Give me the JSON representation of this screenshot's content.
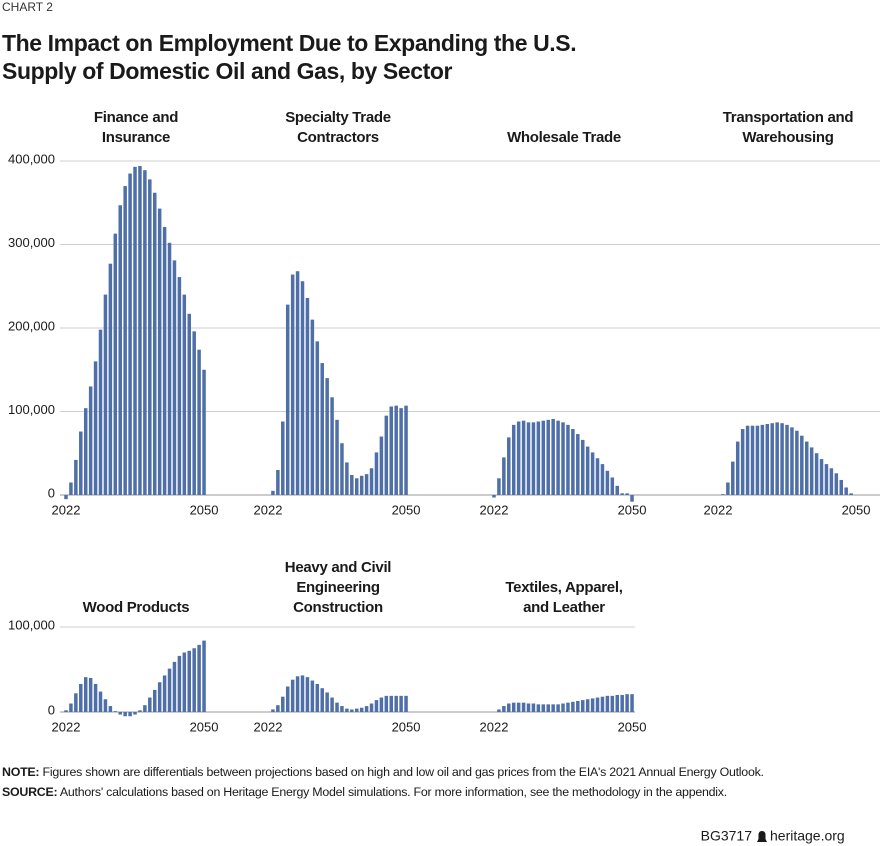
{
  "header": {
    "label": "CHART 2",
    "title": [
      "The Impact on Employment Due to Expanding the U.S.",
      "Supply of Domestic Oil and Gas, by Sector"
    ]
  },
  "chart_data": [
    {
      "type": "bar",
      "title": [
        "Finance and",
        "Insurance"
      ],
      "color": "#4e6fa8",
      "x": [
        2022,
        2023,
        2024,
        2025,
        2026,
        2027,
        2028,
        2029,
        2030,
        2031,
        2032,
        2033,
        2034,
        2035,
        2036,
        2037,
        2038,
        2039,
        2040,
        2041,
        2042,
        2043,
        2044,
        2045,
        2046,
        2047,
        2048,
        2049,
        2050
      ],
      "values": [
        -5000,
        15000,
        42000,
        76000,
        104000,
        130000,
        160000,
        198000,
        240000,
        277000,
        313000,
        347000,
        370000,
        385000,
        393000,
        394000,
        389000,
        378000,
        362000,
        343000,
        321000,
        302000,
        281000,
        261000,
        240000,
        217000,
        196000,
        174000,
        150000
      ],
      "xticks": [
        2022,
        2050
      ],
      "ylim": [
        0,
        400000
      ],
      "yticks": [
        0,
        {
          "value": 100000,
          "label": "100,000"
        },
        {
          "value": 200000,
          "label": "200,000"
        },
        {
          "value": 300000,
          "label": "300,000"
        },
        {
          "value": 400000,
          "label": "400,000"
        }
      ],
      "grid": true
    },
    {
      "type": "bar",
      "title": [
        "Specialty Trade",
        "Contractors"
      ],
      "color": "#4e6fa8",
      "x": [
        2022,
        2023,
        2024,
        2025,
        2026,
        2027,
        2028,
        2029,
        2030,
        2031,
        2032,
        2033,
        2034,
        2035,
        2036,
        2037,
        2038,
        2039,
        2040,
        2041,
        2042,
        2043,
        2044,
        2045,
        2046,
        2047,
        2048,
        2049,
        2050
      ],
      "values": [
        0,
        5000,
        30000,
        88000,
        228000,
        264000,
        268000,
        256000,
        236000,
        210000,
        184000,
        158000,
        140000,
        117000,
        90000,
        62000,
        39000,
        24000,
        20000,
        23000,
        25000,
        32000,
        51000,
        70000,
        95000,
        106000,
        107000,
        104000,
        107000
      ],
      "xticks": [
        2022,
        2050
      ],
      "ylim": [
        0,
        400000
      ],
      "yticks": [
        0,
        {
          "value": 100000,
          "label": "100,000"
        },
        {
          "value": 200000,
          "label": "200,000"
        },
        {
          "value": 300000,
          "label": "300,000"
        },
        {
          "value": 400000,
          "label": "400,000"
        }
      ],
      "grid": true
    },
    {
      "type": "bar",
      "title": [
        "Wholesale Trade"
      ],
      "color": "#4e6fa8",
      "x": [
        2022,
        2023,
        2024,
        2025,
        2026,
        2027,
        2028,
        2029,
        2030,
        2031,
        2032,
        2033,
        2034,
        2035,
        2036,
        2037,
        2038,
        2039,
        2040,
        2041,
        2042,
        2043,
        2044,
        2045,
        2046,
        2047,
        2048,
        2049,
        2050
      ],
      "values": [
        -3000,
        20000,
        45000,
        69000,
        84000,
        88000,
        89000,
        87000,
        87000,
        88000,
        89000,
        90000,
        91000,
        89000,
        87000,
        84000,
        79000,
        73000,
        66000,
        58000,
        51000,
        44000,
        37000,
        29000,
        21000,
        11000,
        2000,
        2000,
        -8000
      ],
      "xticks": [
        2022,
        2050
      ],
      "ylim": [
        0,
        400000
      ],
      "yticks": [
        0,
        {
          "value": 100000,
          "label": "100,000"
        },
        {
          "value": 200000,
          "label": "200,000"
        },
        {
          "value": 300000,
          "label": "300,000"
        },
        {
          "value": 400000,
          "label": "400,000"
        }
      ],
      "grid": true
    },
    {
      "type": "bar",
      "title": [
        "Transportation and",
        "Warehousing"
      ],
      "color": "#4e6fa8",
      "x": [
        2022,
        2023,
        2024,
        2025,
        2026,
        2027,
        2028,
        2029,
        2030,
        2031,
        2032,
        2033,
        2034,
        2035,
        2036,
        2037,
        2038,
        2039,
        2040,
        2041,
        2042,
        2043,
        2044,
        2045,
        2046,
        2047,
        2048,
        2049,
        2050
      ],
      "values": [
        0,
        1000,
        15000,
        40000,
        64000,
        79000,
        83000,
        83000,
        83000,
        84000,
        85000,
        86000,
        87000,
        86000,
        84000,
        81000,
        77000,
        71000,
        64000,
        57000,
        50000,
        43000,
        37000,
        32000,
        26000,
        18000,
        9000,
        2000,
        0
      ],
      "xticks": [
        2022,
        2050
      ],
      "ylim": [
        0,
        400000
      ],
      "yticks": [
        0,
        {
          "value": 100000,
          "label": "100,000"
        },
        {
          "value": 200000,
          "label": "200,000"
        },
        {
          "value": 300000,
          "label": "300,000"
        },
        {
          "value": 400000,
          "label": "400,000"
        }
      ],
      "grid": true
    },
    {
      "type": "bar",
      "title": [
        "Wood Products"
      ],
      "color": "#4e6fa8",
      "x": [
        2022,
        2023,
        2024,
        2025,
        2026,
        2027,
        2028,
        2029,
        2030,
        2031,
        2032,
        2033,
        2034,
        2035,
        2036,
        2037,
        2038,
        2039,
        2040,
        2041,
        2042,
        2043,
        2044,
        2045,
        2046,
        2047,
        2048,
        2049,
        2050
      ],
      "values": [
        2000,
        10000,
        22000,
        33000,
        41000,
        40000,
        33000,
        24000,
        15000,
        7000,
        1000,
        -3000,
        -5000,
        -5000,
        -3000,
        2000,
        8000,
        17000,
        26000,
        35000,
        43000,
        51000,
        59000,
        66000,
        70000,
        72000,
        75000,
        79000,
        84000
      ],
      "xticks": [
        2022,
        2050
      ],
      "ylim": [
        0,
        100000
      ],
      "yticks": [
        0,
        {
          "value": 100000,
          "label": "100,000"
        }
      ],
      "grid": true
    },
    {
      "type": "bar",
      "title": [
        "Heavy and Civil",
        "Engineering",
        "Construction"
      ],
      "color": "#4e6fa8",
      "x": [
        2022,
        2023,
        2024,
        2025,
        2026,
        2027,
        2028,
        2029,
        2030,
        2031,
        2032,
        2033,
        2034,
        2035,
        2036,
        2037,
        2038,
        2039,
        2040,
        2041,
        2042,
        2043,
        2044,
        2045,
        2046,
        2047,
        2048,
        2049,
        2050
      ],
      "values": [
        0,
        3000,
        8000,
        18000,
        30000,
        38000,
        42000,
        43000,
        41000,
        37000,
        33000,
        28000,
        23000,
        17000,
        11000,
        7000,
        4000,
        3000,
        4000,
        5000,
        7000,
        10000,
        14000,
        17000,
        19000,
        19000,
        19000,
        19000,
        19000
      ],
      "xticks": [
        2022,
        2050
      ],
      "ylim": [
        0,
        100000
      ],
      "yticks": [
        0,
        {
          "value": 100000,
          "label": "100,000"
        }
      ],
      "grid": true
    },
    {
      "type": "bar",
      "title": [
        "Textiles, Apparel,",
        "and Leather"
      ],
      "color": "#4e6fa8",
      "x": [
        2022,
        2023,
        2024,
        2025,
        2026,
        2027,
        2028,
        2029,
        2030,
        2031,
        2032,
        2033,
        2034,
        2035,
        2036,
        2037,
        2038,
        2039,
        2040,
        2041,
        2042,
        2043,
        2044,
        2045,
        2046,
        2047,
        2048,
        2049,
        2050
      ],
      "values": [
        0,
        3000,
        7000,
        10000,
        11000,
        11000,
        11000,
        10000,
        10000,
        9000,
        9000,
        9000,
        9000,
        9000,
        10000,
        11000,
        12000,
        13000,
        14000,
        15000,
        16000,
        17000,
        18000,
        19000,
        19000,
        20000,
        20000,
        21000,
        21000
      ],
      "xticks": [
        2022,
        2050
      ],
      "ylim": [
        0,
        100000
      ],
      "yticks": [
        0,
        {
          "value": 100000,
          "label": "100,000"
        }
      ],
      "grid": true
    }
  ],
  "notes": {
    "note_label": "NOTE:",
    "note": "Figures shown are differentials between projections based on high and low oil and gas prices from the EIA's 2021 Annual Energy Outlook.",
    "source_label": "SOURCE:",
    "source": "Authors' calculations based on Heritage Energy Model simulations. For more information, see the methodology in the appendix."
  },
  "footer": {
    "code": "BG3717",
    "site": "heritage.org"
  }
}
